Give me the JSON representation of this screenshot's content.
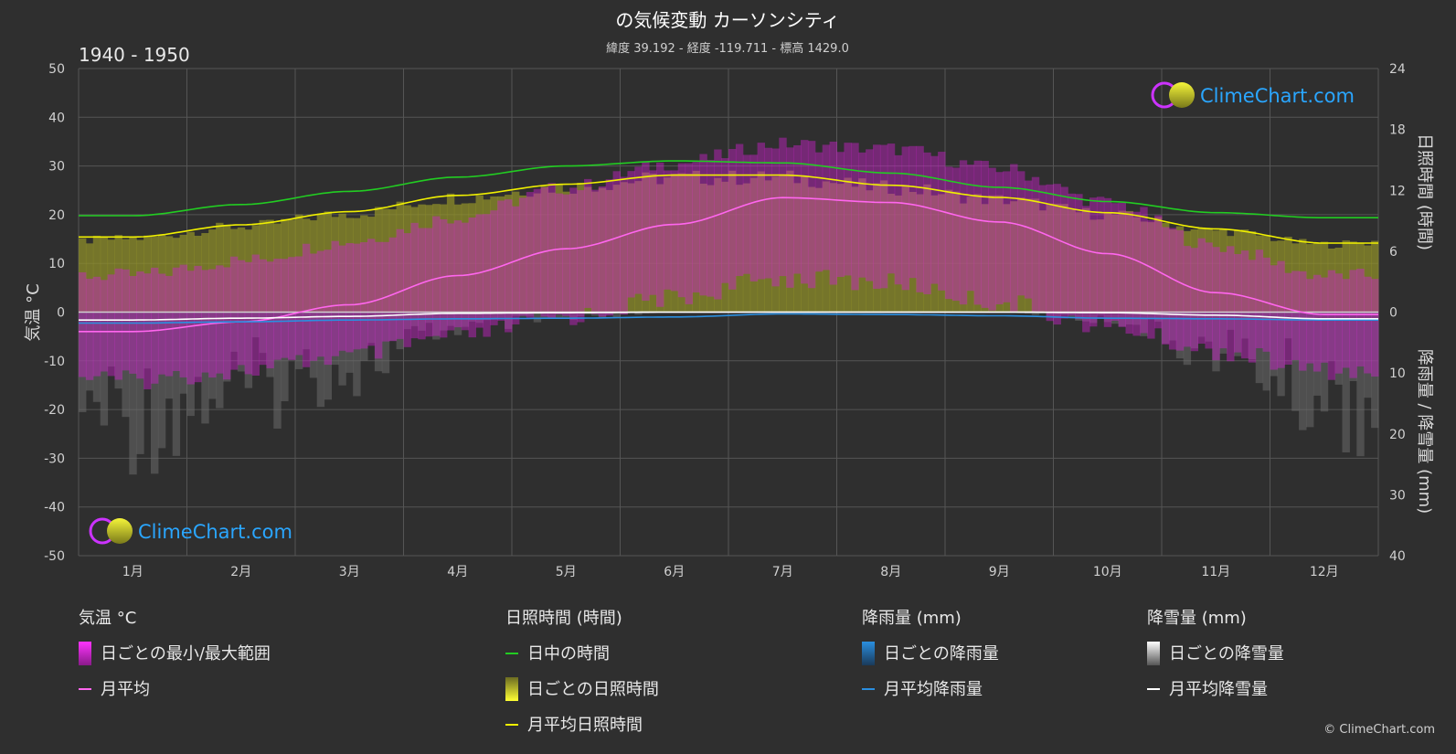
{
  "header": {
    "title": "の気候変動 カーソンシティ",
    "subtitle": "緯度 39.192 - 経度 -119.711 - 標高 1429.0",
    "period": "1940 - 1950"
  },
  "logo": {
    "text": "ClimeChart.com"
  },
  "copyright": "© ClimeChart.com",
  "colors": {
    "background": "#2f2f2f",
    "daylight": "#22cc22",
    "sunshine_avg": "#f0f000",
    "sunshine_band": "#8e8e2a",
    "temp_avg": "#ff66ee",
    "temp_range": "#cc22cc",
    "rain": "#2a8fe0",
    "snow": "#ffffff",
    "snow_bars": "#6a6a6a"
  },
  "legend": {
    "temperature": {
      "heading": "気温 °C",
      "range": "日ごとの最小/最大範囲",
      "avg": "月平均"
    },
    "sunshine": {
      "heading": "日照時間 (時間)",
      "daylight": "日中の時間",
      "daily": "日ごとの日照時間",
      "avg": "月平均日照時間"
    },
    "rain": {
      "heading": "降雨量 (mm)",
      "daily": "日ごとの降雨量",
      "avg": "月平均降雨量"
    },
    "snow": {
      "heading": "降雪量 (mm)",
      "daily": "日ごとの降雪量",
      "avg": "月平均降雪量"
    }
  },
  "chart_data": {
    "type": "line",
    "categories": [
      "1月",
      "2月",
      "3月",
      "4月",
      "5月",
      "6月",
      "7月",
      "8月",
      "9月",
      "10月",
      "11月",
      "12月"
    ],
    "left_axis": {
      "label": "気温 °C",
      "range": [
        -50,
        50
      ],
      "ticks": [
        "50",
        "40",
        "30",
        "20",
        "10",
        "0",
        "-10",
        "-20",
        "-30",
        "-40",
        "-50"
      ]
    },
    "right_axis_top": {
      "label": "日照時間 (時間)",
      "range": [
        0,
        24
      ],
      "ticks": [
        "24",
        "18",
        "12",
        "6",
        "0"
      ]
    },
    "right_axis_bottom": {
      "label": "降雨量 / 降雪量 (mm)",
      "range": [
        0,
        40
      ],
      "ticks": [
        "10",
        "20",
        "30",
        "40"
      ]
    },
    "grid": true,
    "series": [
      {
        "name": "日中の時間",
        "axis": "sunshine_hours",
        "values": [
          9.5,
          10.6,
          11.9,
          13.3,
          14.4,
          14.9,
          14.7,
          13.7,
          12.3,
          10.9,
          9.8,
          9.3
        ]
      },
      {
        "name": "月平均日照時間",
        "axis": "sunshine_hours",
        "values": [
          7.4,
          8.6,
          9.9,
          11.5,
          12.6,
          13.5,
          13.5,
          12.5,
          11.3,
          9.8,
          8.2,
          6.8
        ]
      },
      {
        "name": "月平均",
        "axis": "temperature_c",
        "values": [
          -4,
          -2,
          1.5,
          7.5,
          13,
          18,
          23.5,
          22.5,
          18.5,
          12,
          4,
          -0.5
        ]
      },
      {
        "name": "月平均降雨量",
        "axis": "precip_mm",
        "values": [
          1.8,
          1.6,
          1.3,
          1.1,
          1.0,
          0.8,
          0.3,
          0.4,
          0.6,
          1.0,
          1.1,
          1.3
        ]
      },
      {
        "name": "月平均降雪量",
        "axis": "precip_mm",
        "values": [
          1.3,
          1.0,
          0.7,
          0.2,
          0.1,
          0.0,
          0.0,
          0.0,
          0.0,
          0.1,
          0.5,
          1.1
        ]
      }
    ],
    "temperature_range": {
      "name": "日ごとの最小/最大範囲",
      "min": [
        -12,
        -10,
        -7,
        -3,
        1,
        5,
        9,
        8,
        4,
        -1,
        -6,
        -10
      ],
      "max": [
        6,
        9,
        13,
        18,
        24,
        29,
        33,
        32,
        28,
        21,
        12,
        6
      ]
    }
  }
}
